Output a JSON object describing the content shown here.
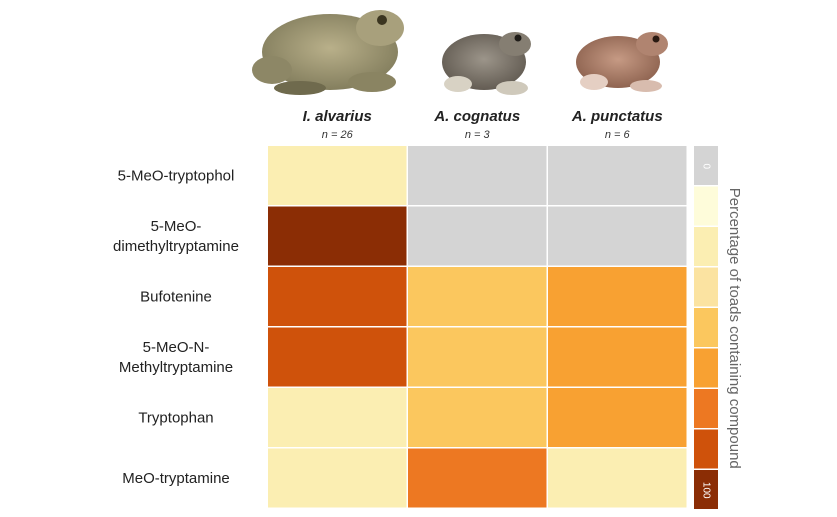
{
  "chart_data": {
    "type": "heatmap",
    "title": "",
    "columns": [
      {
        "name": "I. alvarius",
        "n": "n = 26",
        "image": "large-olive-toad"
      },
      {
        "name": "A. cognatus",
        "n": "n = 3",
        "image": "gray-spotted-toad"
      },
      {
        "name": "A. punctatus",
        "n": "n = 6",
        "image": "reddish-brown-toad"
      }
    ],
    "rows": [
      {
        "label": [
          "5-MeO-tryptophol"
        ],
        "values": [
          10,
          null,
          null
        ]
      },
      {
        "label": [
          "5-MeO-",
          "dimethyltryptamine"
        ],
        "values": [
          100,
          null,
          null
        ]
      },
      {
        "label": [
          "Bufotenine"
        ],
        "values": [
          80,
          40,
          60
        ]
      },
      {
        "label": [
          "5-MeO-N-",
          "Methyltryptamine"
        ],
        "values": [
          80,
          40,
          60
        ]
      },
      {
        "label": [
          "Tryptophan"
        ],
        "values": [
          20,
          40,
          60
        ]
      },
      {
        "label": [
          "MeO-tryptamine"
        ],
        "values": [
          10,
          70,
          20
        ]
      }
    ],
    "colorbar": {
      "title": "Percentage of toads containing compound",
      "min_label": "0",
      "max_label": "100",
      "range": [
        0,
        100
      ],
      "na_color": "#d4d4d4",
      "colors": [
        "#fefcda",
        "#fbeeb2",
        "#fbe3a1",
        "#fbc75e",
        "#f8a132",
        "#ed7822",
        "#cf520b",
        "#8b2d05"
      ]
    }
  }
}
